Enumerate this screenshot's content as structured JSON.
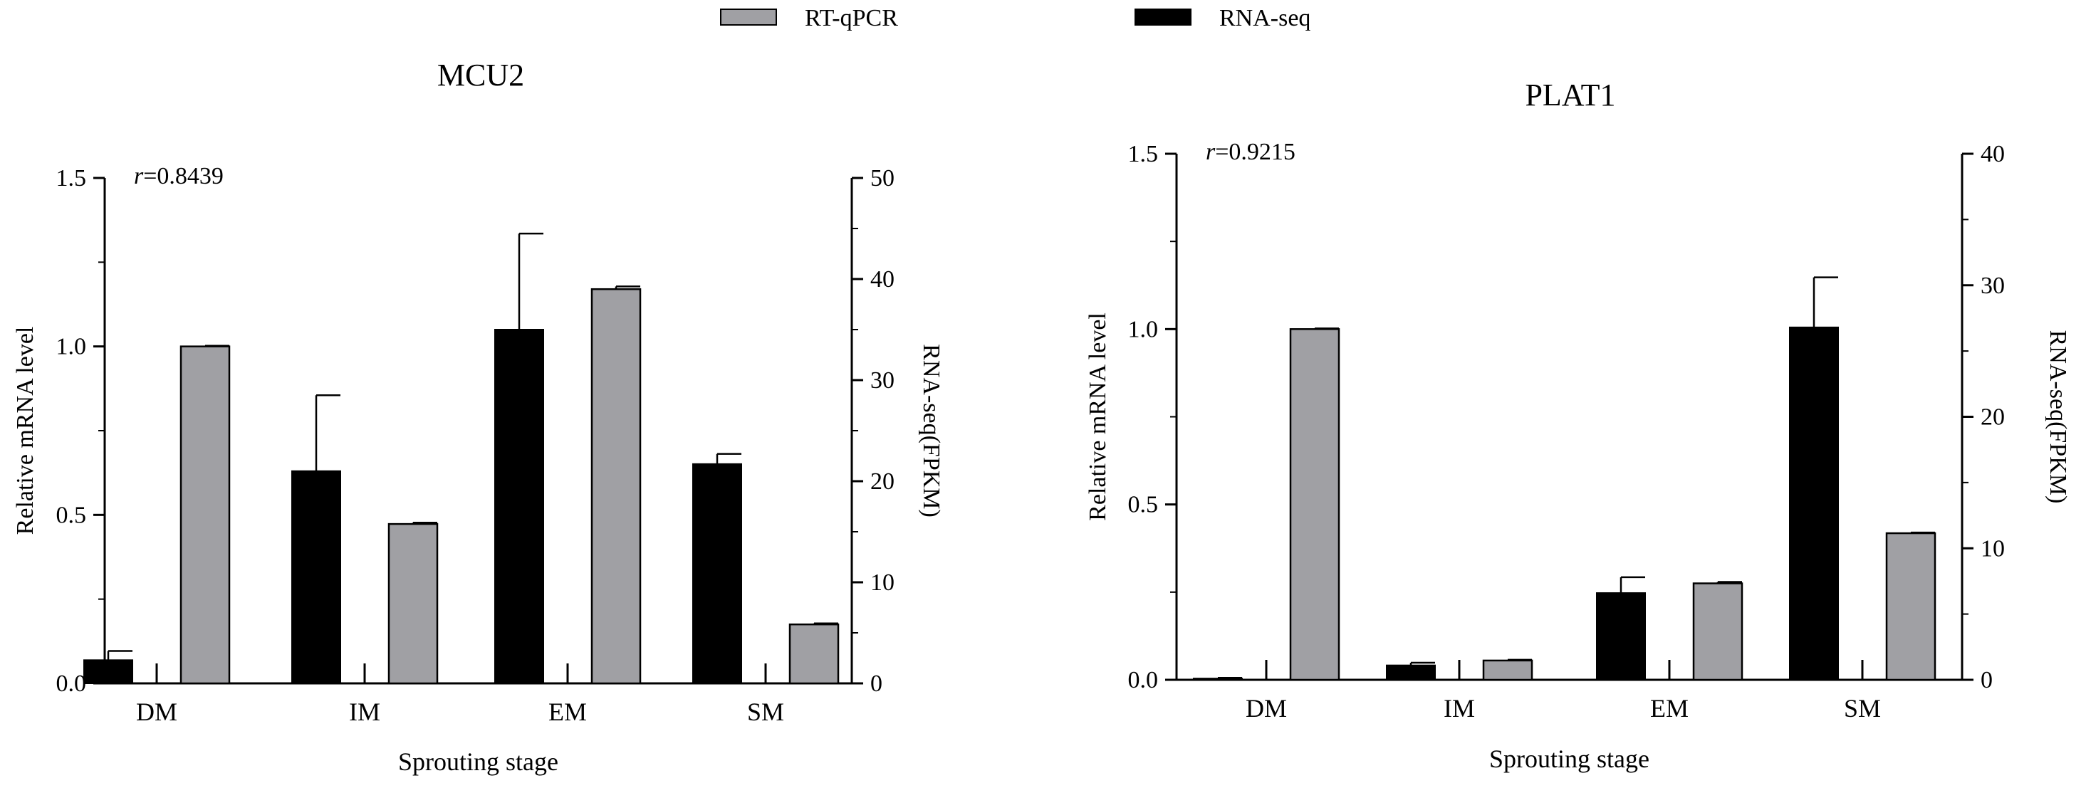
{
  "legend": [
    {
      "label": "RT-qPCR",
      "color": "#a0a0a4"
    },
    {
      "label": "RNA-seq",
      "color": "#000000"
    }
  ],
  "colors": {
    "rtqpcr": "#a0a0a4",
    "rnaseq": "#000000",
    "axis": "#000000"
  },
  "chart_data": [
    {
      "type": "bar",
      "title": "MCU2",
      "annotation": {
        "italic": "r",
        "text": "=0.8439"
      },
      "categories": [
        "DM",
        "IM",
        "EM",
        "SM"
      ],
      "xlabel": "Sprouting stage",
      "ylabel": "Relative mRNA level",
      "y2label": "RNA-seq(FPKM)",
      "ylim": [
        0,
        1.5
      ],
      "y2lim": [
        0,
        50
      ],
      "yticks": [
        "0.0",
        "0.5",
        "1.0",
        "1.5"
      ],
      "y2ticks": [
        "0",
        "10",
        "20",
        "30",
        "40",
        "50"
      ],
      "legend_position": "top",
      "series": [
        {
          "name": "RNA-seq",
          "axis": "right",
          "values": [
            2.3,
            21.0,
            35.0,
            21.7
          ],
          "errors": [
            0.9,
            7.5,
            9.5,
            1.0
          ]
        },
        {
          "name": "RT-qPCR",
          "axis": "left",
          "values": [
            1.0,
            0.473,
            1.17,
            0.175
          ],
          "errors": [
            0.002,
            0.004,
            0.008,
            0.003
          ]
        }
      ]
    },
    {
      "type": "bar",
      "title": "PLAT1",
      "annotation": {
        "italic": "r",
        "text": "=0.9215"
      },
      "categories": [
        "DM",
        "IM",
        "EM",
        "SM"
      ],
      "xlabel": "Sprouting stage",
      "ylabel": "Relative mRNA level",
      "y2label": "RNA-seq(FPKM)",
      "ylim": [
        0,
        1.5
      ],
      "y2lim": [
        0,
        40
      ],
      "yticks": [
        "0.0",
        "0.5",
        "1.0",
        "1.5"
      ],
      "y2ticks": [
        "0",
        "10",
        "20",
        "30",
        "40"
      ],
      "legend_position": "top",
      "series": [
        {
          "name": "RNA-seq",
          "axis": "right",
          "values": [
            0.1,
            1.1,
            6.6,
            26.8
          ],
          "errors": [
            0.05,
            0.2,
            1.2,
            3.8
          ]
        },
        {
          "name": "RT-qPCR",
          "axis": "left",
          "values": [
            1.0,
            0.055,
            0.275,
            0.418
          ],
          "errors": [
            0.002,
            0.002,
            0.004,
            0.002
          ]
        }
      ]
    }
  ]
}
